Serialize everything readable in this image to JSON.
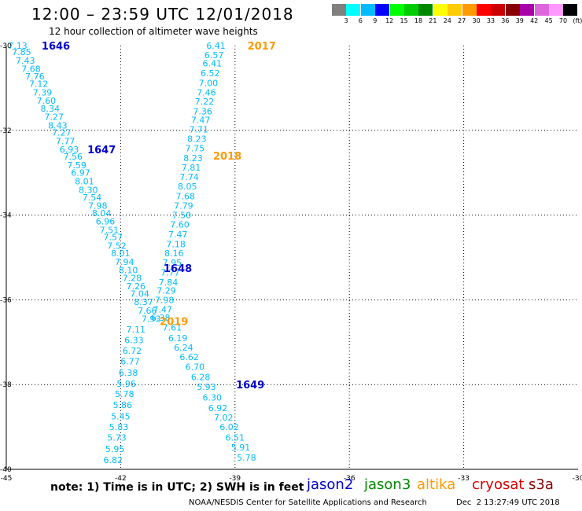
{
  "title": "12:00 – 23:59 UTC 12/01/2018",
  "subtitle": "12 hour collection of altimeter wave heights",
  "note": "note: 1) Time is in UTC; 2) SWH is in feet",
  "satellites": [
    {
      "name": "jason2",
      "color": "#0000cc"
    },
    {
      "name": "jason3",
      "color": "#008800"
    },
    {
      "name": "altika",
      "color": "#ff9900"
    },
    {
      "name": "cryosat",
      "color": "#dd0000"
    },
    {
      "name": "s3a",
      "color": "#880000"
    }
  ],
  "credit": "NOAA/NESDIS Center for Satellite Applications and Research",
  "timestamp": "Dec  2 13:27:49 UTC 2018",
  "colorbar": {
    "colors": [
      "#808080",
      "#00ffff",
      "#00bbff",
      "#0000ff",
      "#00ff00",
      "#00cc00",
      "#008800",
      "#ffff00",
      "#ffcc00",
      "#ff9900",
      "#ff0000",
      "#cc0000",
      "#880000",
      "#aa00aa",
      "#dd66dd",
      "#ff99ff",
      "#000000"
    ],
    "labels": [
      "3",
      "6",
      "9",
      "12",
      "15",
      "18",
      "21",
      "24",
      "27",
      "30",
      "33",
      "36",
      "39",
      "42",
      "45",
      "70",
      "(ft)"
    ]
  },
  "chart_data": {
    "type": "scatter",
    "xlim": [
      -45,
      -30
    ],
    "ylim": [
      -40,
      -30
    ],
    "xticks": [
      -45,
      -42,
      -39,
      -36,
      -33,
      -30
    ],
    "yticks": [
      -30,
      -32,
      -34,
      -36,
      -38,
      -40
    ],
    "tick_labels": {
      "x": [
        "-45",
        "-42",
        "-39",
        "-36",
        "-33",
        "-30"
      ],
      "y": [
        "-30",
        "-32",
        "-34",
        "-36",
        "-38",
        "-40"
      ]
    },
    "grid": true,
    "value_color": "#00bbff",
    "tracks": [
      {
        "satellite": "jason2",
        "color": "#0000cc",
        "points": [
          {
            "lon": -44.7,
            "lat": -30.0,
            "v": "7.13"
          },
          {
            "lon": -44.6,
            "lat": -30.15,
            "v": "7.85"
          },
          {
            "lon": -44.5,
            "lat": -30.35,
            "v": "7.43"
          },
          {
            "lon": -44.35,
            "lat": -30.55,
            "v": "7.68"
          },
          {
            "lon": -44.25,
            "lat": -30.72,
            "v": "7.76"
          },
          {
            "lon": -44.15,
            "lat": -30.9,
            "v": "7.12"
          },
          {
            "lon": -44.05,
            "lat": -31.1,
            "v": "7.39"
          },
          {
            "lon": -43.95,
            "lat": -31.3,
            "v": "7.60"
          },
          {
            "lon": -43.85,
            "lat": -31.48,
            "v": "8.34"
          },
          {
            "lon": -43.75,
            "lat": -31.68,
            "v": "7.27"
          },
          {
            "lon": -43.65,
            "lat": -31.88,
            "v": "8.43"
          },
          {
            "lon": -43.55,
            "lat": -32.05,
            "v": "7.27"
          },
          {
            "lon": -43.45,
            "lat": -32.25,
            "v": "7.77"
          },
          {
            "lon": -43.35,
            "lat": -32.45,
            "v": "6.93"
          },
          {
            "lon": -43.25,
            "lat": -32.62,
            "v": "7.56"
          },
          {
            "lon": -43.15,
            "lat": -32.82,
            "v": "7.59"
          },
          {
            "lon": -43.05,
            "lat": -33.0,
            "v": "6.97"
          },
          {
            "lon": -42.95,
            "lat": -33.2,
            "v": "8.01"
          },
          {
            "lon": -42.85,
            "lat": -33.4,
            "v": "8.30"
          },
          {
            "lon": -42.75,
            "lat": -33.58,
            "v": "7.54"
          },
          {
            "lon": -42.6,
            "lat": -33.78,
            "v": "7.98"
          },
          {
            "lon": -42.5,
            "lat": -33.95,
            "v": "8.04"
          },
          {
            "lon": -42.4,
            "lat": -34.15,
            "v": "6.96"
          },
          {
            "lon": -42.3,
            "lat": -34.35,
            "v": "7.51"
          },
          {
            "lon": -42.2,
            "lat": -34.52,
            "v": "7.57"
          },
          {
            "lon": -42.1,
            "lat": -34.72,
            "v": "7.52"
          },
          {
            "lon": -42.0,
            "lat": -34.9,
            "v": "8.01"
          },
          {
            "lon": -41.9,
            "lat": -35.1,
            "v": "7.94"
          },
          {
            "lon": -41.8,
            "lat": -35.3,
            "v": "8.10"
          },
          {
            "lon": -41.7,
            "lat": -35.48,
            "v": "7.28"
          },
          {
            "lon": -41.6,
            "lat": -35.68,
            "v": "7.26"
          },
          {
            "lon": -41.5,
            "lat": -35.85,
            "v": "7.04"
          },
          {
            "lon": -41.4,
            "lat": -36.05,
            "v": "8.37"
          },
          {
            "lon": -41.3,
            "lat": -36.25,
            "v": "7.66"
          },
          {
            "lon": -41.2,
            "lat": -36.45,
            "v": "7.93"
          },
          {
            "lon": -41.6,
            "lat": -36.7,
            "v": "7.11"
          },
          {
            "lon": -41.65,
            "lat": -36.95,
            "v": "6.33"
          },
          {
            "lon": -41.7,
            "lat": -37.2,
            "v": "6.72"
          },
          {
            "lon": -41.75,
            "lat": -37.45,
            "v": "6.77"
          },
          {
            "lon": -41.8,
            "lat": -37.72,
            "v": "6.38"
          },
          {
            "lon": -41.85,
            "lat": -37.98,
            "v": "5.96"
          },
          {
            "lon": -41.9,
            "lat": -38.22,
            "v": "5.78"
          },
          {
            "lon": -41.95,
            "lat": -38.48,
            "v": "5.86"
          },
          {
            "lon": -42.0,
            "lat": -38.75,
            "v": "5.45"
          },
          {
            "lon": -42.05,
            "lat": -39.0,
            "v": "5.83"
          },
          {
            "lon": -42.1,
            "lat": -39.25,
            "v": "5.73"
          },
          {
            "lon": -42.15,
            "lat": -39.52,
            "v": "5.95"
          },
          {
            "lon": -42.2,
            "lat": -39.78,
            "v": "6.82"
          }
        ],
        "times": [
          {
            "lon": -43.7,
            "lat": -30.0,
            "label": "1646"
          },
          {
            "lon": -42.5,
            "lat": -32.45,
            "label": "1647"
          },
          {
            "lon": -40.5,
            "lat": -35.25,
            "label": "1648"
          },
          {
            "lon": -38.6,
            "lat": -38.0,
            "label": "1649"
          }
        ]
      },
      {
        "satellite": "altika",
        "color": "#ff9900",
        "points": [
          {
            "lon": -39.5,
            "lat": -30.0,
            "v": "6.41"
          },
          {
            "lon": -39.55,
            "lat": -30.22,
            "v": "6.57"
          },
          {
            "lon": -39.6,
            "lat": -30.42,
            "v": "6.41"
          },
          {
            "lon": -39.65,
            "lat": -30.65,
            "v": "6.52"
          },
          {
            "lon": -39.7,
            "lat": -30.88,
            "v": "7.00"
          },
          {
            "lon": -39.75,
            "lat": -31.1,
            "v": "7.46"
          },
          {
            "lon": -39.8,
            "lat": -31.32,
            "v": "7.22"
          },
          {
            "lon": -39.85,
            "lat": -31.55,
            "v": "7.36"
          },
          {
            "lon": -39.9,
            "lat": -31.75,
            "v": "7.47"
          },
          {
            "lon": -39.95,
            "lat": -31.98,
            "v": "7.71"
          },
          {
            "lon": -40.0,
            "lat": -32.2,
            "v": "8.23"
          },
          {
            "lon": -40.05,
            "lat": -32.42,
            "v": "7.75"
          },
          {
            "lon": -40.1,
            "lat": -32.65,
            "v": "8.23"
          },
          {
            "lon": -40.15,
            "lat": -32.88,
            "v": "7.81"
          },
          {
            "lon": -40.2,
            "lat": -33.1,
            "v": "7.74"
          },
          {
            "lon": -40.25,
            "lat": -33.32,
            "v": "8.05"
          },
          {
            "lon": -40.3,
            "lat": -33.55,
            "v": "7.68"
          },
          {
            "lon": -40.35,
            "lat": -33.78,
            "v": "7.79"
          },
          {
            "lon": -40.4,
            "lat": -34.0,
            "v": "7.50"
          },
          {
            "lon": -40.45,
            "lat": -34.22,
            "v": "7.60"
          },
          {
            "lon": -40.5,
            "lat": -34.45,
            "v": "7.47"
          },
          {
            "lon": -40.55,
            "lat": -34.68,
            "v": "7.18"
          },
          {
            "lon": -40.6,
            "lat": -34.9,
            "v": "8.16"
          },
          {
            "lon": -40.65,
            "lat": -35.12,
            "v": "7.95"
          },
          {
            "lon": -40.7,
            "lat": -35.35,
            "v": "7.77"
          },
          {
            "lon": -40.75,
            "lat": -35.58,
            "v": "7.84"
          },
          {
            "lon": -40.8,
            "lat": -35.78,
            "v": "7.29"
          },
          {
            "lon": -40.85,
            "lat": -36.0,
            "v": "7.98"
          },
          {
            "lon": -40.9,
            "lat": -36.22,
            "v": "7.47"
          },
          {
            "lon": -40.95,
            "lat": -36.42,
            "v": "6.38"
          },
          {
            "lon": -40.65,
            "lat": -36.65,
            "v": "7.61"
          },
          {
            "lon": -40.5,
            "lat": -36.9,
            "v": "6.19"
          },
          {
            "lon": -40.35,
            "lat": -37.12,
            "v": "6.24"
          },
          {
            "lon": -40.2,
            "lat": -37.35,
            "v": "6.62"
          },
          {
            "lon": -40.05,
            "lat": -37.58,
            "v": "6.70"
          },
          {
            "lon": -39.9,
            "lat": -37.82,
            "v": "6.28"
          },
          {
            "lon": -39.75,
            "lat": -38.05,
            "v": "5.93"
          },
          {
            "lon": -39.6,
            "lat": -38.3,
            "v": "6.30"
          },
          {
            "lon": -39.45,
            "lat": -38.55,
            "v": "6.92"
          },
          {
            "lon": -39.3,
            "lat": -38.78,
            "v": "7.02"
          },
          {
            "lon": -39.15,
            "lat": -39.0,
            "v": "6.02"
          },
          {
            "lon": -39.0,
            "lat": -39.25,
            "v": "6.51"
          },
          {
            "lon": -38.85,
            "lat": -39.48,
            "v": "5.91"
          },
          {
            "lon": -38.7,
            "lat": -39.72,
            "v": "5.78"
          }
        ],
        "times": [
          {
            "lon": -38.3,
            "lat": -30.0,
            "label": "2017"
          },
          {
            "lon": -39.2,
            "lat": -32.6,
            "label": "2018"
          },
          {
            "lon": -40.6,
            "lat": -36.5,
            "label": "2019"
          }
        ]
      }
    ]
  }
}
